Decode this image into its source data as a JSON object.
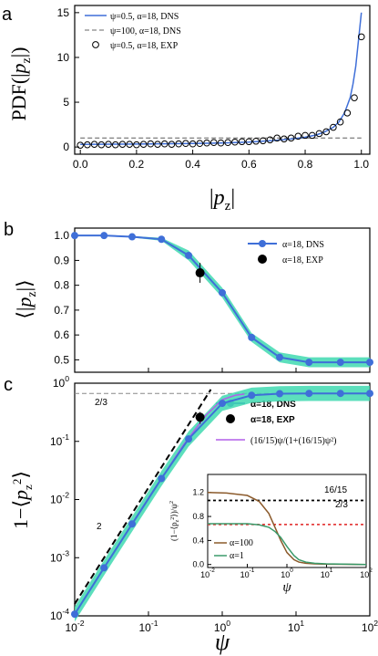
{
  "colors": {
    "blue": "#3f6fd8",
    "teal": "#3fd9b0",
    "purple": "#b25ee8",
    "brown": "#8b5a2b",
    "green": "#3a9a6a",
    "red": "#e02020"
  },
  "chart_data": [
    {
      "panel": "a",
      "type": "line",
      "xlabel": "|p_z|",
      "ylabel": "PDF(|p_z|)",
      "xlim": [
        -0.02,
        1.03
      ],
      "ylim": [
        -0.8,
        15.8
      ],
      "xticks": [
        "0.0",
        "0.2",
        "0.4",
        "0.6",
        "0.8",
        "1.0"
      ],
      "yticks": [
        "0",
        "5",
        "10",
        "15"
      ],
      "legend": [
        "ψ=0.5, α=18, DNS",
        "ψ=100, α=18, DNS",
        "ψ=0.5, α=18, EXP"
      ],
      "series": [
        {
          "name": "ψ=0.5, α=18, DNS",
          "style": "line",
          "x": [
            0,
            0.2,
            0.4,
            0.5,
            0.6,
            0.65,
            0.7,
            0.75,
            0.8,
            0.84,
            0.87,
            0.9,
            0.92,
            0.94,
            0.96,
            0.97,
            0.98,
            0.99,
            1.0
          ],
          "y": [
            0.3,
            0.33,
            0.4,
            0.45,
            0.55,
            0.65,
            0.75,
            0.9,
            1.1,
            1.35,
            1.7,
            2.2,
            2.8,
            3.8,
            5.5,
            7.0,
            9.0,
            12.0,
            15.0
          ]
        },
        {
          "name": "ψ=100, α=18, DNS",
          "style": "dash",
          "x": [
            0,
            1.0
          ],
          "y": [
            1.0,
            1.0
          ]
        },
        {
          "name": "ψ=0.5, α=18, EXP",
          "style": "circle",
          "x": [
            0.0,
            0.025,
            0.05,
            0.075,
            0.1,
            0.125,
            0.15,
            0.175,
            0.2,
            0.225,
            0.25,
            0.275,
            0.3,
            0.325,
            0.35,
            0.375,
            0.4,
            0.425,
            0.45,
            0.475,
            0.5,
            0.525,
            0.55,
            0.575,
            0.6,
            0.625,
            0.65,
            0.675,
            0.7,
            0.725,
            0.75,
            0.775,
            0.8,
            0.825,
            0.85,
            0.875,
            0.9,
            0.925,
            0.95,
            0.975,
            1.0
          ],
          "y": [
            0.2,
            0.25,
            0.3,
            0.25,
            0.3,
            0.25,
            0.3,
            0.3,
            0.25,
            0.3,
            0.35,
            0.3,
            0.35,
            0.3,
            0.35,
            0.4,
            0.35,
            0.4,
            0.45,
            0.5,
            0.45,
            0.5,
            0.55,
            0.6,
            0.6,
            0.65,
            0.7,
            0.8,
            1.0,
            0.9,
            1.0,
            1.2,
            1.3,
            1.3,
            1.5,
            1.7,
            2.2,
            2.8,
            3.8,
            5.5,
            12.3
          ]
        }
      ]
    },
    {
      "panel": "b",
      "type": "line",
      "ylabel": "⟨|p_z|⟩",
      "xscale": "log",
      "xlim": [
        0.01,
        100
      ],
      "ylim": [
        0.45,
        1.03
      ],
      "yticks": [
        "0.5",
        "0.6",
        "0.7",
        "0.8",
        "0.9",
        "1.0"
      ],
      "legend": [
        "α=18, DNS",
        "α=18, EXP"
      ],
      "series": [
        {
          "name": "α=18, DNS",
          "style": "line-markers",
          "x": [
            0.01,
            0.025,
            0.06,
            0.15,
            0.35,
            1.0,
            2.5,
            6.0,
            15.0,
            40.0,
            100.0
          ],
          "y": [
            1.0,
            1.0,
            0.995,
            0.985,
            0.92,
            0.77,
            0.59,
            0.51,
            0.49,
            0.49,
            0.49
          ],
          "band": [
            0.0,
            0.0,
            0.003,
            0.006,
            0.02,
            0.02,
            0.018,
            0.02,
            0.02,
            0.02,
            0.02
          ]
        },
        {
          "name": "α=18, EXP",
          "style": "dot",
          "x": [
            0.5
          ],
          "y": [
            0.85
          ],
          "err": 0.04
        }
      ]
    },
    {
      "panel": "c",
      "type": "line",
      "xlabel": "ψ",
      "ylabel": "1−⟨p_z²⟩",
      "xscale": "log",
      "yscale": "log",
      "xlim": [
        0.01,
        100
      ],
      "ylim": [
        0.0001,
        1
      ],
      "xticks": [
        "10-2",
        "10-1",
        "100",
        "101",
        "102"
      ],
      "yticks": [
        "10-4",
        "10-3",
        "10-2",
        "10-1",
        "100"
      ],
      "annotations": [
        "2/3",
        "2"
      ],
      "legend": [
        "α=18, DNS",
        "α=18, EXP",
        "(16/15)ψ/(1+(16/15)ψ²)"
      ],
      "series": [
        {
          "name": "α=18, DNS",
          "style": "line-markers",
          "x": [
            0.01,
            0.025,
            0.06,
            0.15,
            0.35,
            1.0,
            2.5,
            6.0,
            15.0,
            40.0,
            100.0
          ],
          "y": [
            0.000107,
            0.00067,
            0.0038,
            0.023,
            0.11,
            0.45,
            0.62,
            0.66,
            0.667,
            0.667,
            0.667
          ]
        },
        {
          "name": "α=18, EXP",
          "style": "dot",
          "x": [
            0.5
          ],
          "y": [
            0.26
          ],
          "err": 0.06
        },
        {
          "name": "(16/15)ψ/(1+(16/15)ψ²)",
          "style": "purple-line",
          "x": [
            0.01,
            0.03,
            0.1,
            0.3,
            0.6,
            1.0,
            1.5,
            2.0
          ],
          "y": [
            0.000107,
            0.00096,
            0.0106,
            0.088,
            0.28,
            0.52,
            0.62,
            0.65
          ]
        },
        {
          "name": "2",
          "style": "black-dash",
          "x": [
            0.01,
            0.7
          ],
          "y": [
            0.00016,
            0.78
          ]
        },
        {
          "name": "2/3",
          "style": "gray-dash",
          "x": [
            0.01,
            100
          ],
          "y": [
            0.667,
            0.667
          ]
        }
      ]
    },
    {
      "panel": "c-inset",
      "type": "line",
      "xlabel": "ψ",
      "ylabel": "(1−⟨p_z²⟩)/ψ²",
      "xscale": "log",
      "xlim": [
        0.01,
        100
      ],
      "ylim": [
        -0.05,
        1.5
      ],
      "xticks": [
        "10-2",
        "10-1",
        "100",
        "101",
        "102"
      ],
      "yticks": [
        "0.0",
        "0.4",
        "0.8",
        "1.2"
      ],
      "annotations": [
        "16/15",
        "2/3"
      ],
      "legend": [
        "α=100",
        "α=1"
      ],
      "series": [
        {
          "name": "16/15",
          "style": "black-dot",
          "x": [
            0.01,
            100
          ],
          "y": [
            1.067,
            1.067
          ]
        },
        {
          "name": "2/3",
          "style": "red-dot",
          "x": [
            0.01,
            100
          ],
          "y": [
            0.667,
            0.667
          ]
        },
        {
          "name": "α=100",
          "style": "brown",
          "x": [
            0.01,
            0.03,
            0.1,
            0.2,
            0.35,
            0.5,
            0.7,
            1.0,
            1.5,
            2.0,
            3.0,
            5.0,
            10.0,
            100.0
          ],
          "y": [
            1.2,
            1.19,
            1.15,
            1.05,
            0.85,
            0.62,
            0.4,
            0.2,
            0.08,
            0.04,
            0.02,
            0.01,
            0.005,
            0.0
          ]
        },
        {
          "name": "α=1",
          "style": "green",
          "x": [
            0.01,
            0.03,
            0.1,
            0.2,
            0.35,
            0.5,
            0.7,
            1.0,
            1.5,
            2.0,
            3.0,
            5.0,
            10.0,
            100.0
          ],
          "y": [
            0.68,
            0.68,
            0.68,
            0.66,
            0.62,
            0.55,
            0.45,
            0.3,
            0.15,
            0.08,
            0.04,
            0.02,
            0.01,
            0.0
          ]
        }
      ]
    }
  ]
}
